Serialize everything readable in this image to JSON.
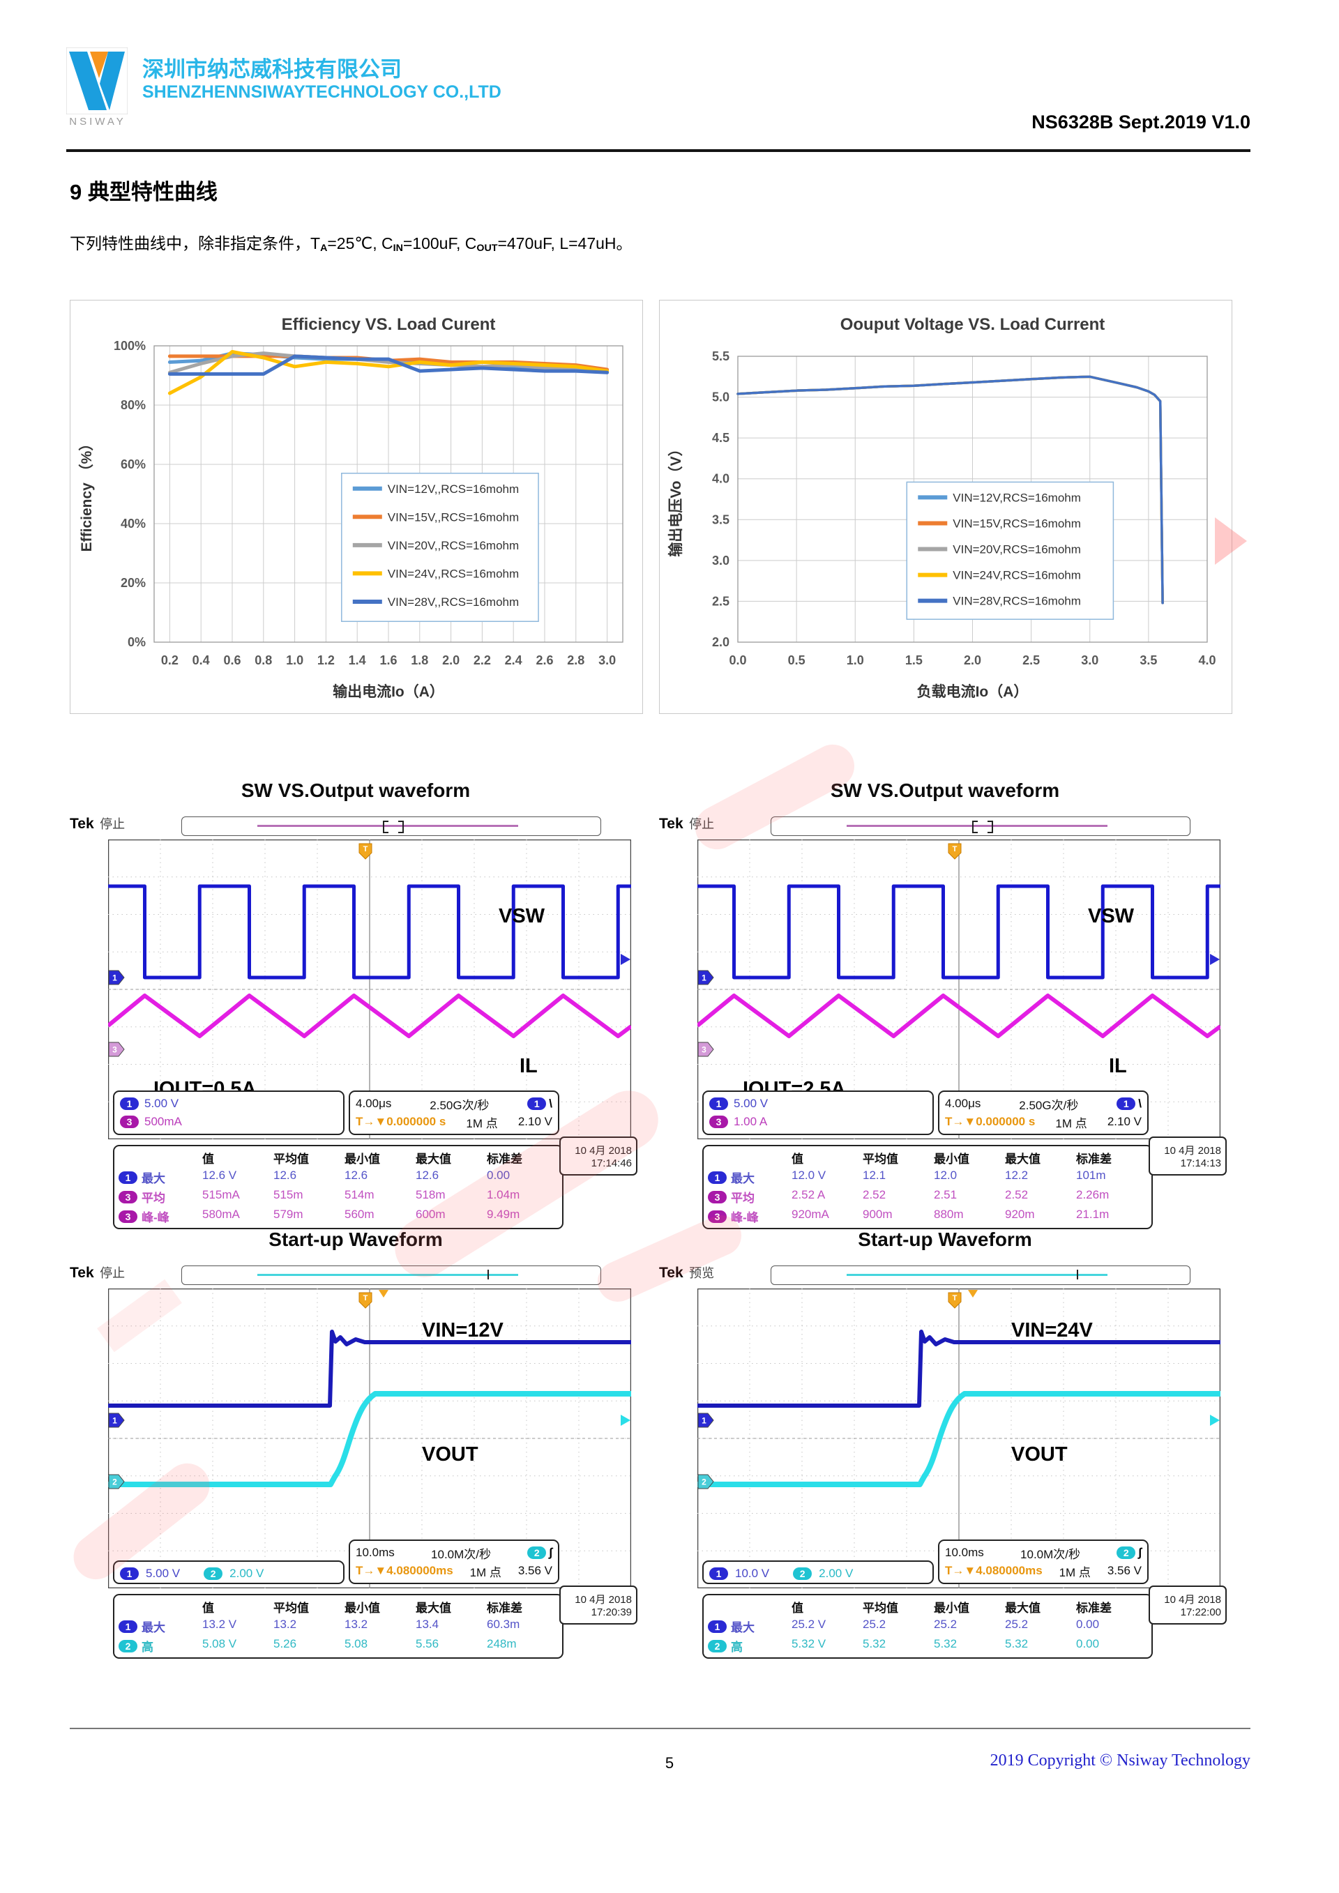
{
  "header": {
    "logo_text": "NSIWAY",
    "company_cn": "深圳市纳芯威科技有限公司",
    "company_en": "SHENZHENNSIWAYTECHNOLOGY CO.,LTD",
    "doc_ref": "NS6328B Sept.2019 V1.0",
    "brand_color": "#29b6e8"
  },
  "section": {
    "title": "9 典型特性曲线",
    "cond_t1": "下列特性曲线中，除非指定条件，T",
    "cond_s1": "A",
    "cond_t2": "=25℃, C",
    "cond_s2": "IN",
    "cond_t3": "=100uF, C",
    "cond_s3": "OUT",
    "cond_t4": "=470uF, L=47uH。"
  },
  "chart_data": [
    {
      "type": "line",
      "title": "Efficiency VS. Load Curent",
      "xlabel": "输出电流Io（A）",
      "ylabel": "Efficiency （%）",
      "xlim": [
        0.1,
        3.1
      ],
      "ylim": [
        0,
        100
      ],
      "grid": true,
      "legend_position": "center",
      "xticks": {
        "v": [
          0.2,
          0.4,
          0.6,
          0.8,
          1.0,
          1.2,
          1.4,
          1.6,
          1.8,
          2.0,
          2.2,
          2.4,
          2.6,
          2.8,
          3.0
        ],
        "labels": [
          "0.2",
          "0.4",
          "0.6",
          "0.8",
          "1.0",
          "1.2",
          "1.4",
          "1.6",
          "1.8",
          "2.0",
          "2.2",
          "2.4",
          "2.6",
          "2.8",
          "3.0"
        ]
      },
      "yticks": {
        "v": [
          0,
          20,
          40,
          60,
          80,
          100
        ],
        "labels": [
          "0%",
          "20%",
          "40%",
          "60%",
          "80%",
          "100%"
        ]
      },
      "x": [
        0.2,
        0.4,
        0.6,
        0.8,
        1.0,
        1.2,
        1.4,
        1.6,
        1.8,
        2.0,
        2.2,
        2.4,
        2.6,
        2.8,
        3.0
      ],
      "series": [
        {
          "name": "VIN=12V,,RCS=16mohm",
          "color": "#5b9bd5",
          "values": [
            94.5,
            95.0,
            97.5,
            97.0,
            96.0,
            95.5,
            95.5,
            95.0,
            94.5,
            93.5,
            93.0,
            93.0,
            92.5,
            92.5,
            91.5
          ]
        },
        {
          "name": "VIN=15V,,RCS=16mohm",
          "color": "#ed7d31",
          "values": [
            96.5,
            96.5,
            96.5,
            96.5,
            96.5,
            96.0,
            96.0,
            95.0,
            95.5,
            94.5,
            94.5,
            94.5,
            94.0,
            93.5,
            92.0
          ]
        },
        {
          "name": "VIN=20V,,RCS=16mohm",
          "color": "#a5a5a5",
          "values": [
            91.0,
            94.0,
            96.5,
            97.5,
            96.5,
            96.0,
            95.5,
            94.5,
            94.0,
            93.5,
            93.0,
            93.5,
            92.5,
            92.0,
            91.5
          ]
        },
        {
          "name": "VIN=24V,,RCS=16mohm",
          "color": "#ffc000",
          "values": [
            84.0,
            89.5,
            98.0,
            96.0,
            93.0,
            94.5,
            94.0,
            93.0,
            94.5,
            93.5,
            94.5,
            94.0,
            93.5,
            93.0,
            91.5
          ]
        },
        {
          "name": "VIN=28V,,RCS=16mohm",
          "color": "#4472c4",
          "values": [
            90.5,
            90.5,
            90.5,
            90.5,
            96.5,
            96.0,
            95.5,
            95.5,
            91.5,
            92.0,
            92.5,
            92.0,
            91.5,
            91.5,
            91.0
          ]
        }
      ],
      "legend": {
        "x": 0.4,
        "y": 0.43,
        "w": 0.42,
        "h": 0.5
      }
    },
    {
      "type": "line",
      "title": "Oouput Voltage VS. Load Current",
      "xlabel": "负载电流Io（A）",
      "ylabel": "输出电压Vo（V）",
      "xlim": [
        0.0,
        4.0
      ],
      "ylim": [
        2.0,
        5.5
      ],
      "grid": true,
      "legend_position": "center",
      "xticks": {
        "v": [
          0,
          0.5,
          1.0,
          1.5,
          2.0,
          2.5,
          3.0,
          3.5,
          4.0
        ],
        "labels": [
          "0.0",
          "0.5",
          "1.0",
          "1.5",
          "2.0",
          "2.5",
          "3.0",
          "3.5",
          "4.0"
        ]
      },
      "yticks": {
        "v": [
          2.0,
          2.5,
          3.0,
          3.5,
          4.0,
          4.5,
          5.0,
          5.5
        ],
        "labels": [
          "2.0",
          "2.5",
          "3.0",
          "3.5",
          "4.0",
          "4.5",
          "5.0",
          "5.5"
        ]
      },
      "x": [
        0,
        0.25,
        0.5,
        0.75,
        1.0,
        1.25,
        1.5,
        1.75,
        2.0,
        2.25,
        2.5,
        2.75,
        3.0,
        3.25,
        3.4,
        3.5,
        3.55,
        3.6,
        3.62
      ],
      "all_series_overlap": true,
      "shared_values": [
        5.04,
        5.06,
        5.08,
        5.09,
        5.11,
        5.13,
        5.14,
        5.16,
        5.18,
        5.2,
        5.22,
        5.24,
        5.25,
        5.17,
        5.12,
        5.07,
        5.03,
        4.95,
        2.48
      ],
      "series": [
        {
          "name": "VIN=12V,RCS=16mohm",
          "color": "#5b9bd5",
          "values": "shared"
        },
        {
          "name": "VIN=15V,RCS=16mohm",
          "color": "#ed7d31",
          "values": "shared"
        },
        {
          "name": "VIN=20V,RCS=16mohm",
          "color": "#a5a5a5",
          "values": "shared"
        },
        {
          "name": "VIN=24V,RCS=16mohm",
          "color": "#ffc000",
          "values": "shared"
        },
        {
          "name": "VIN=28V,RCS=16mohm",
          "color": "#4472c4",
          "values": "shared"
        }
      ],
      "legend": {
        "x": 0.36,
        "y": 0.44,
        "w": 0.44,
        "h": 0.48
      }
    }
  ],
  "scopes": {
    "sw_title": "SW VS.Output waveform",
    "startup_title": "Start-up Waveform",
    "table_headers": [
      "值",
      "平均值",
      "最小值",
      "最大值",
      "标准差"
    ],
    "sw_left": {
      "kind": "sw",
      "brand": "Tek",
      "mode": "停止",
      "ch_a": {
        "num": "1",
        "scale": "5.00 V"
      },
      "ch_b": {
        "num": "3",
        "scale": "500mA"
      },
      "labels": {
        "trace1": "VSW",
        "trace2": "IL",
        "corner": "IOUT=0.5A"
      },
      "time": {
        "tdiv": "4.00μs",
        "rate": "2.50G次/秒",
        "pts": "1M 点",
        "offset": "T→▼0.000000 s",
        "trig_num": "1",
        "trig_slope": "\\",
        "trig_level": "2.10 V"
      },
      "meas": [
        {
          "ch": "1",
          "name": "最大",
          "vals": [
            "12.6 V",
            "12.6",
            "12.6",
            "12.6",
            "0.00"
          ]
        },
        {
          "ch": "3",
          "name": "平均",
          "vals": [
            "515mA",
            "515m",
            "514m",
            "518m",
            "1.04m"
          ]
        },
        {
          "ch": "3",
          "name": "峰-峰",
          "vals": [
            "580mA",
            "579m",
            "560m",
            "600m",
            "9.49m"
          ]
        }
      ],
      "date": "10 4月 2018",
      "clock": "17:14:46"
    },
    "sw_right": {
      "kind": "sw",
      "brand": "Tek",
      "mode": "停止",
      "ch_a": {
        "num": "1",
        "scale": "5.00 V"
      },
      "ch_b": {
        "num": "3",
        "scale": "1.00 A"
      },
      "labels": {
        "trace1": "VSW",
        "trace2": "IL",
        "corner": "IOUT=2.5A"
      },
      "time": {
        "tdiv": "4.00μs",
        "rate": "2.50G次/秒",
        "pts": "1M 点",
        "offset": "T→▼0.000000 s",
        "trig_num": "1",
        "trig_slope": "\\",
        "trig_level": "2.10 V"
      },
      "meas": [
        {
          "ch": "1",
          "name": "最大",
          "vals": [
            "12.0 V",
            "12.1",
            "12.0",
            "12.2",
            "101m"
          ]
        },
        {
          "ch": "3",
          "name": "平均",
          "vals": [
            "2.52 A",
            "2.52",
            "2.51",
            "2.52",
            "2.26m"
          ]
        },
        {
          "ch": "3",
          "name": "峰-峰",
          "vals": [
            "920mA",
            "900m",
            "880m",
            "920m",
            "21.1m"
          ]
        }
      ],
      "date": "10 4月 2018",
      "clock": "17:14:13"
    },
    "su_left": {
      "kind": "su",
      "brand": "Tek",
      "mode": "停止",
      "ch_a": {
        "num": "1",
        "scale": "5.00 V"
      },
      "ch_b": {
        "num": "2",
        "scale": "2.00 V"
      },
      "labels": {
        "trace1": "VIN=12V",
        "trace2": "VOUT",
        "corner": ""
      },
      "time": {
        "tdiv": "10.0ms",
        "rate": "10.0M次/秒",
        "pts": "1M 点",
        "offset": "T→▼4.080000ms",
        "trig_num": "2",
        "trig_slope": "∫",
        "trig_level": "3.56 V"
      },
      "meas": [
        {
          "ch": "1",
          "name": "最大",
          "vals": [
            "13.2 V",
            "13.2",
            "13.2",
            "13.4",
            "60.3m"
          ]
        },
        {
          "ch": "2",
          "name": "高",
          "vals": [
            "5.08 V",
            "5.26",
            "5.08",
            "5.56",
            "248m"
          ]
        }
      ],
      "date": "10 4月 2018",
      "clock": "17:20:39"
    },
    "su_right": {
      "kind": "su",
      "brand": "Tek",
      "mode": "预览",
      "ch_a": {
        "num": "1",
        "scale": "10.0 V"
      },
      "ch_b": {
        "num": "2",
        "scale": "2.00 V"
      },
      "labels": {
        "trace1": "VIN=24V",
        "trace2": "VOUT",
        "corner": ""
      },
      "time": {
        "tdiv": "10.0ms",
        "rate": "10.0M次/秒",
        "pts": "1M 点",
        "offset": "T→▼4.080000ms",
        "trig_num": "2",
        "trig_slope": "∫",
        "trig_level": "3.56 V"
      },
      "meas": [
        {
          "ch": "1",
          "name": "最大",
          "vals": [
            "25.2 V",
            "25.2",
            "25.2",
            "25.2",
            "0.00"
          ]
        },
        {
          "ch": "2",
          "name": "高",
          "vals": [
            "5.32 V",
            "5.32",
            "5.32",
            "5.32",
            "0.00"
          ]
        }
      ],
      "date": "10 4月 2018",
      "clock": "17:22:00"
    }
  },
  "footer": {
    "page": "5",
    "copyright": "2019 Copyright © Nsiway Technology"
  }
}
